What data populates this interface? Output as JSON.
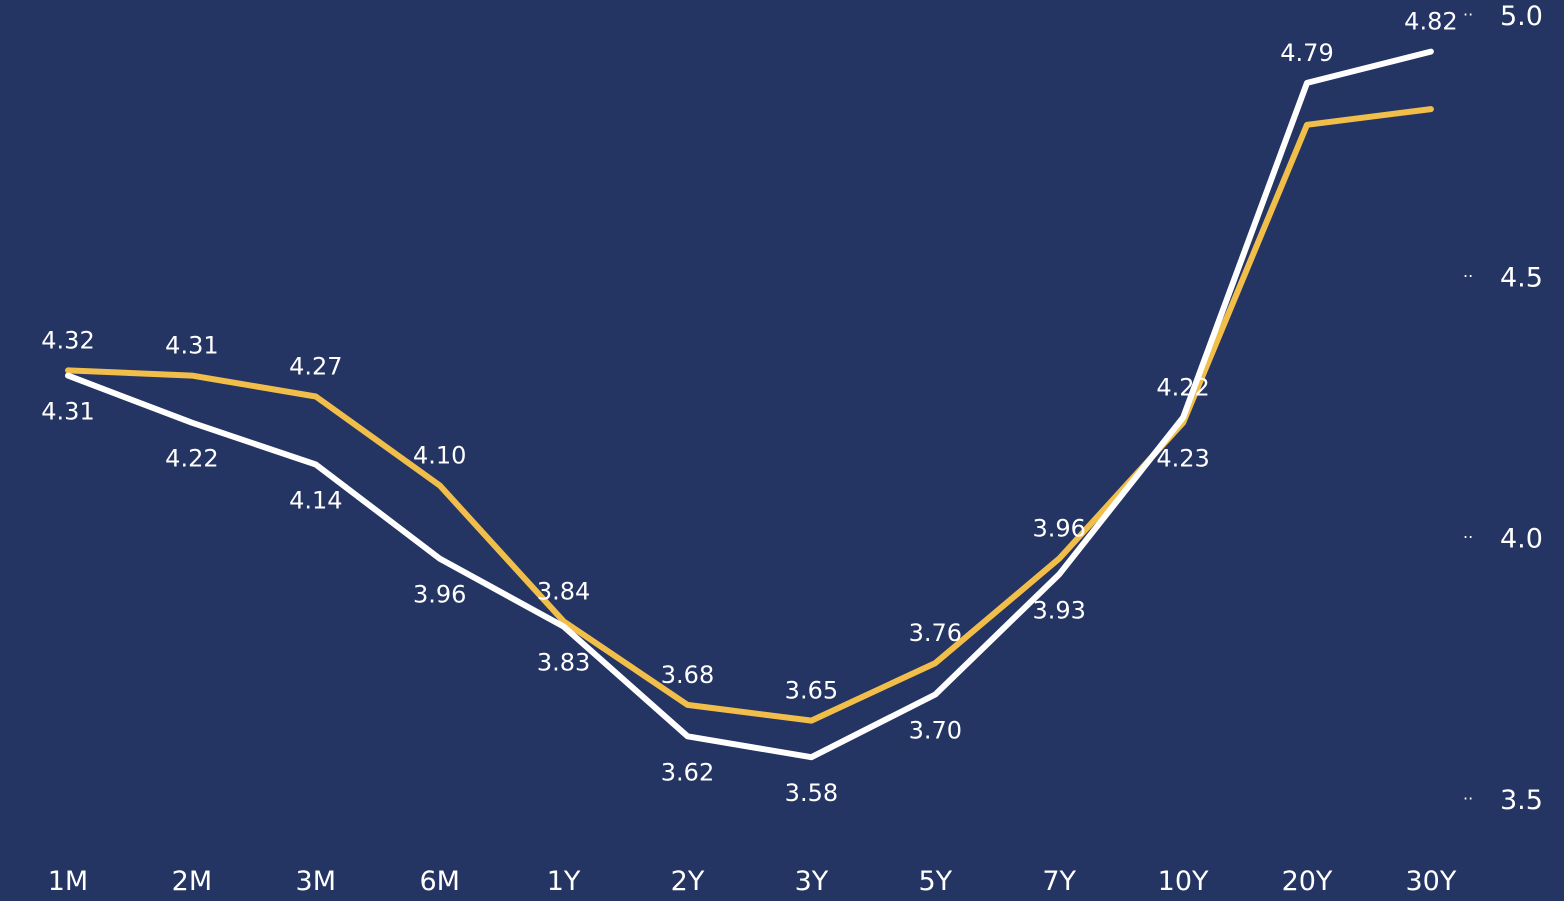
{
  "chart_data": {
    "type": "line",
    "categories": [
      "1M",
      "2M",
      "3M",
      "6M",
      "1Y",
      "2Y",
      "3Y",
      "5Y",
      "7Y",
      "10Y",
      "20Y",
      "30Y"
    ],
    "series": [
      {
        "color": "#F2BE4A",
        "values": [
          4.32,
          4.31,
          4.27,
          4.1,
          3.84,
          3.68,
          3.65,
          3.76,
          3.96,
          4.22,
          4.79,
          4.82
        ]
      },
      {
        "color": "#FFFFFF",
        "values": [
          4.31,
          4.22,
          4.14,
          3.96,
          3.83,
          3.62,
          3.58,
          3.7,
          3.93,
          4.23,
          4.87,
          4.93
        ]
      }
    ],
    "data_labels": [
      {
        "category": "1M",
        "text": "4.32",
        "position": "above"
      },
      {
        "category": "1M",
        "text": "4.31",
        "position": "below"
      },
      {
        "category": "2M",
        "text": "4.31",
        "position": "above"
      },
      {
        "category": "2M",
        "text": "4.22",
        "position": "below"
      },
      {
        "category": "3M",
        "text": "4.27",
        "position": "above"
      },
      {
        "category": "3M",
        "text": "4.14",
        "position": "below"
      },
      {
        "category": "6M",
        "text": "4.10",
        "position": "above"
      },
      {
        "category": "6M",
        "text": "3.96",
        "position": "below"
      },
      {
        "category": "1Y",
        "text": "3.84",
        "position": "above"
      },
      {
        "category": "1Y",
        "text": "3.83",
        "position": "below"
      },
      {
        "category": "2Y",
        "text": "3.68",
        "position": "above"
      },
      {
        "category": "2Y",
        "text": "3.62",
        "position": "below"
      },
      {
        "category": "3Y",
        "text": "3.65",
        "position": "above"
      },
      {
        "category": "3Y",
        "text": "3.58",
        "position": "below"
      },
      {
        "category": "5Y",
        "text": "3.76",
        "position": "above"
      },
      {
        "category": "5Y",
        "text": "3.70",
        "position": "below"
      },
      {
        "category": "7Y",
        "text": "3.96",
        "position": "above"
      },
      {
        "category": "7Y",
        "text": "3.93",
        "position": "below"
      },
      {
        "category": "10Y",
        "text": "4.22",
        "position": "above"
      },
      {
        "category": "10Y",
        "text": "4.23",
        "position": "below"
      },
      {
        "category": "20Y",
        "text": "4.79",
        "position": "above"
      },
      {
        "category": "30Y",
        "text": "4.82",
        "position": "above"
      }
    ],
    "yaxis": {
      "position": "right",
      "ticks": [
        3.5,
        4.0,
        4.5,
        5.0
      ],
      "tick_labels": [
        "3.5",
        "4.0",
        "4.5",
        "5.0"
      ],
      "ylim": [
        3.5,
        5.0
      ]
    },
    "title": "",
    "xlabel": "",
    "ylabel": "",
    "grid": false,
    "legend": "none",
    "background": "#243463"
  }
}
